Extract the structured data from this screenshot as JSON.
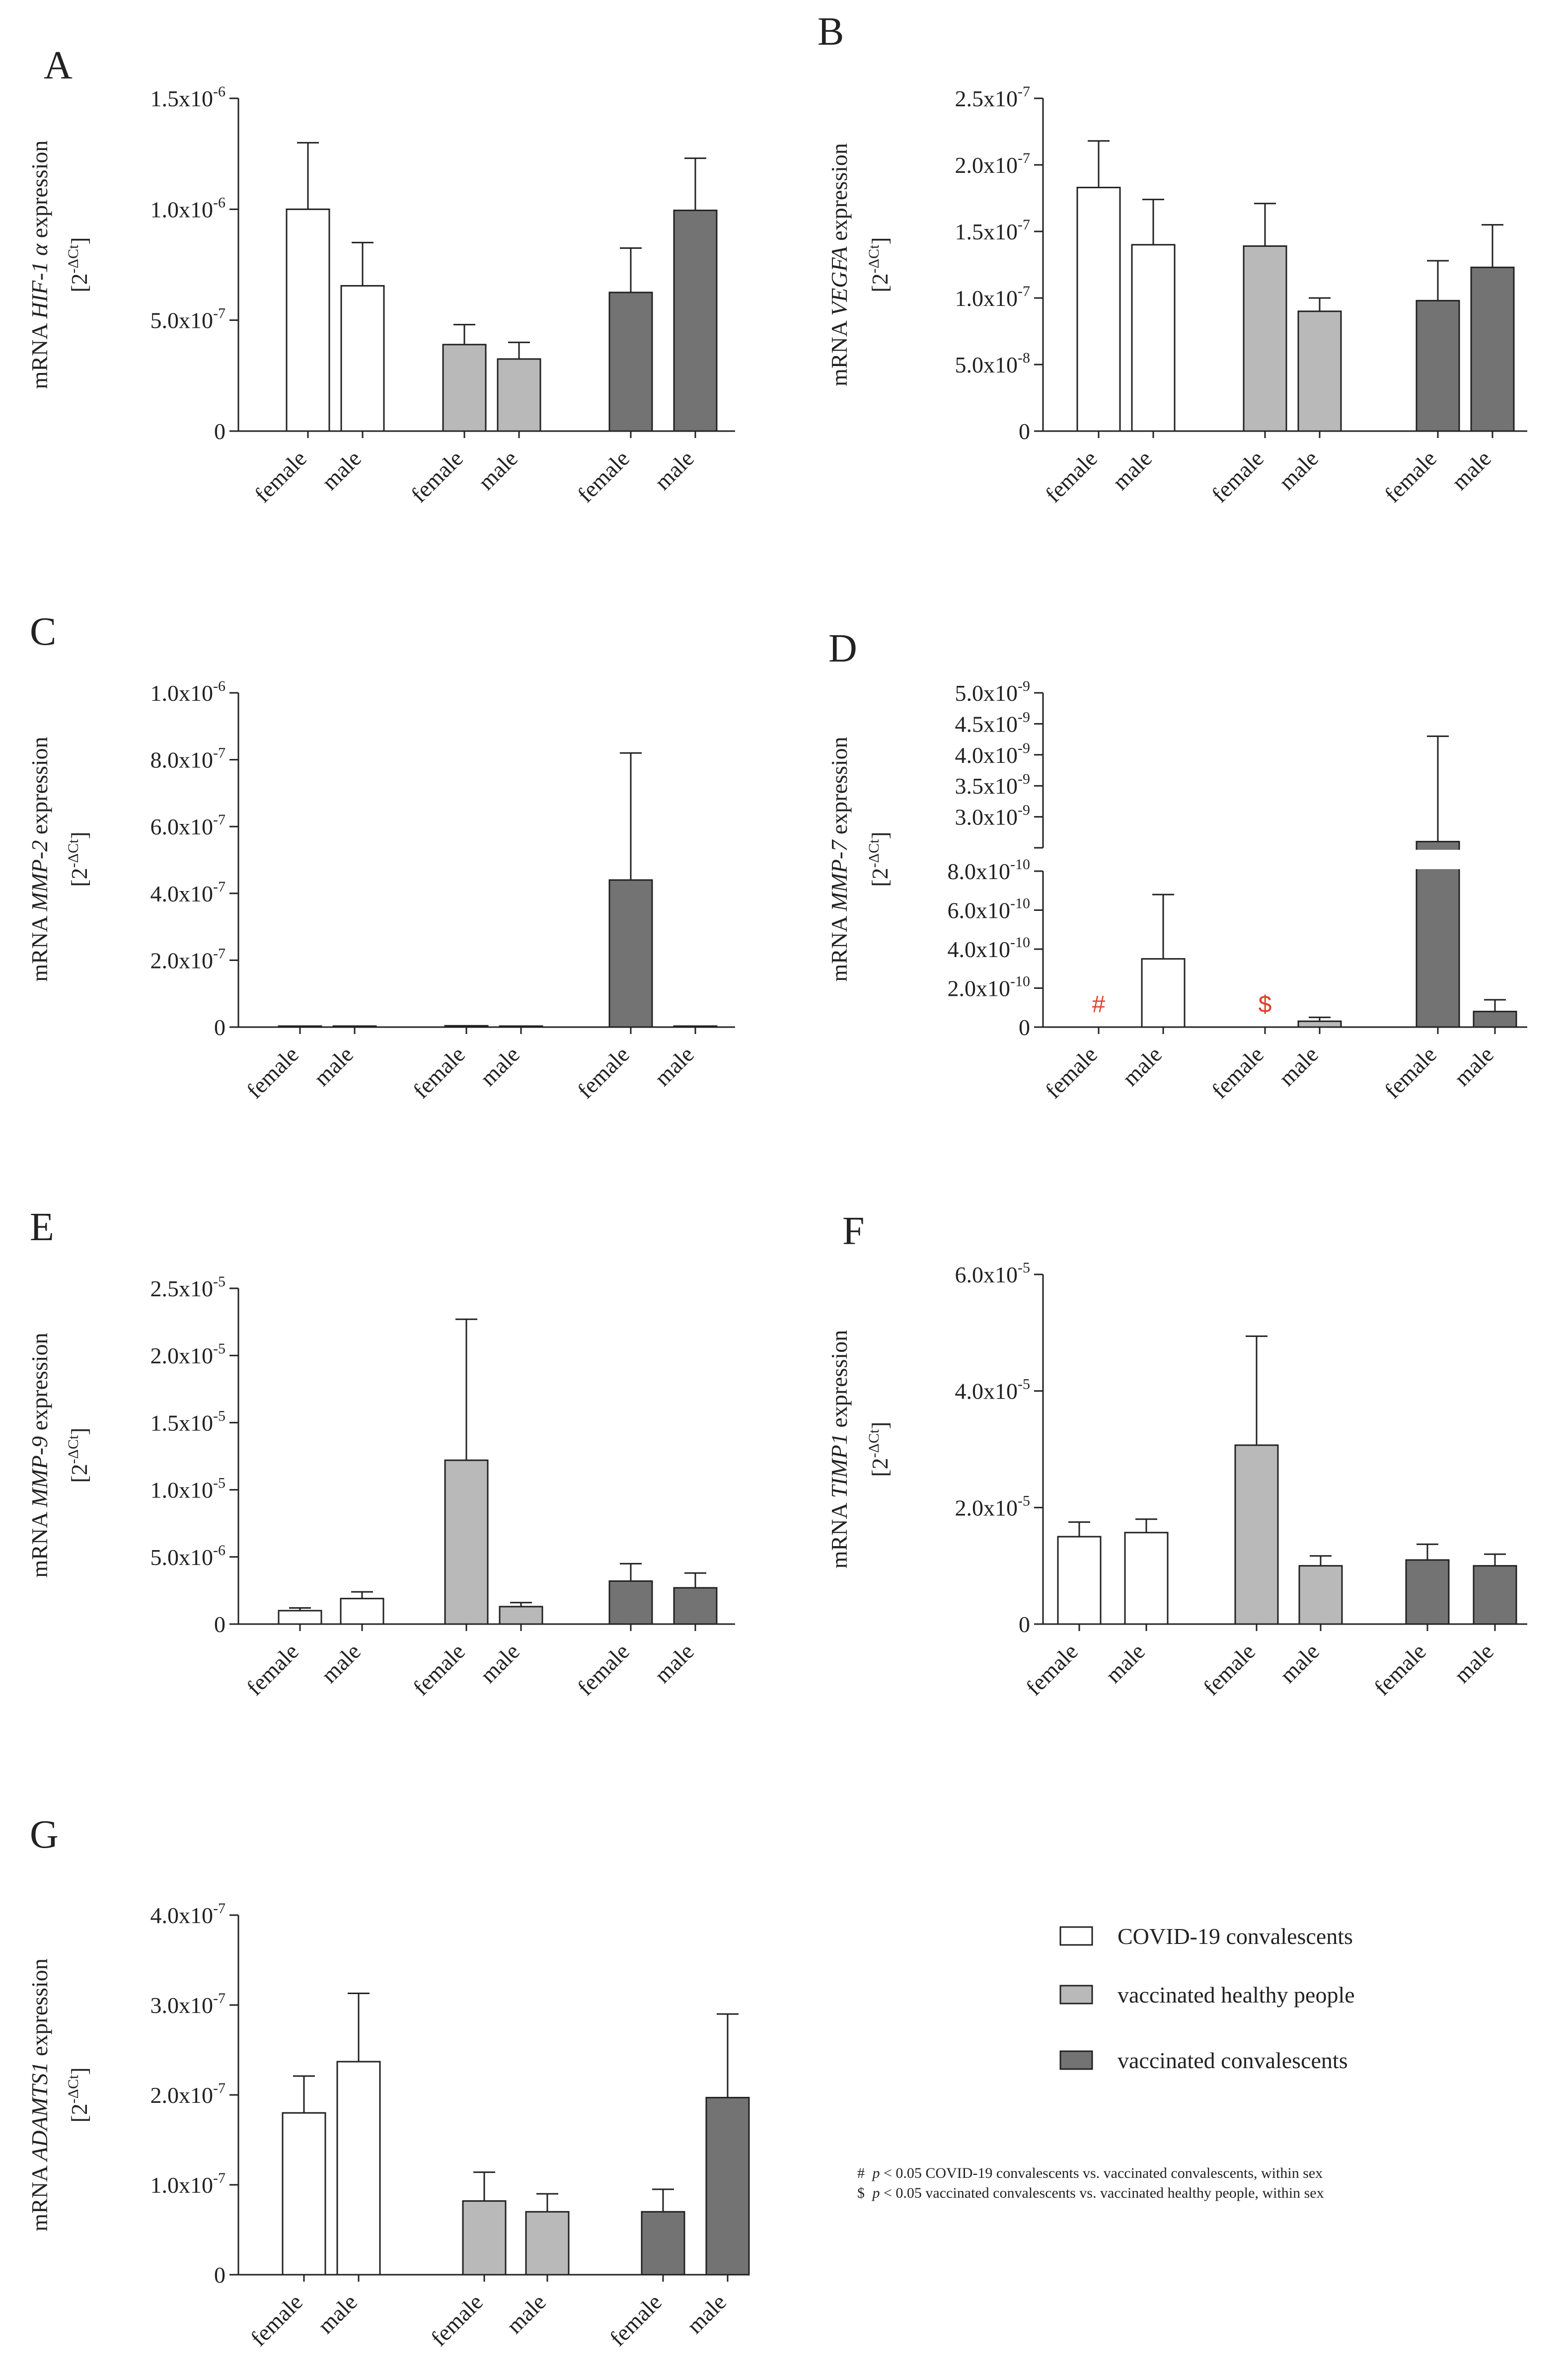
{
  "colors": {
    "group0": "#ffffff",
    "group1": "#b9b9b9",
    "group2": "#737373",
    "sig": "#e23a28"
  },
  "legend": [
    {
      "label": "COVID-19 convalescents",
      "color": "#ffffff"
    },
    {
      "label": "vaccinated healthy people",
      "color": "#b9b9b9"
    },
    {
      "label": "vaccinated convalescents",
      "color": "#737373"
    }
  ],
  "notes": {
    "hash": {
      "symbol": "#",
      "italic": "p",
      "text": " < 0.05 COVID-19 convalescents vs. vaccinated convalescents, within sex"
    },
    "dollar": {
      "symbol": "$",
      "italic": "p",
      "text": " < 0.05 vaccinated convalescents vs. vaccinated healthy people, within sex"
    }
  },
  "chart_data": [
    {
      "letter": "A",
      "type": "bar",
      "gene": "HIF-1 α",
      "ylabel": {
        "prefix": "mRNA ",
        "gene": "HIF-1 α",
        "suffix": " expression",
        "line2": "[2-ΔCt]"
      },
      "categories": [
        "female",
        "male",
        "female",
        "male",
        "female",
        "male"
      ],
      "groups": [
        0,
        0,
        1,
        1,
        2,
        2
      ],
      "values": [
        1e-06,
        6.55e-07,
        3.9e-07,
        3.25e-07,
        6.25e-07,
        9.95e-07
      ],
      "errors": [
        3e-07,
        1.95e-07,
        9e-08,
        7.5e-08,
        2e-07,
        2.35e-07
      ],
      "ylim": [
        0,
        1.5e-06
      ],
      "yticks": [
        0,
        5e-07,
        1e-06,
        1.5e-06
      ],
      "yticklabels": [
        {
          "m": "0",
          "e": ""
        },
        {
          "m": "5.0x10",
          "e": "-7"
        },
        {
          "m": "1.0x10",
          "e": "-6"
        },
        {
          "m": "1.5x10",
          "e": "-6"
        }
      ]
    },
    {
      "letter": "B",
      "type": "bar",
      "gene": "VEGFA",
      "ylabel": {
        "prefix": "mRNA ",
        "gene": "VEGFA",
        "suffix": " expression",
        "line2": "[2-ΔCt]"
      },
      "categories": [
        "female",
        "male",
        "female",
        "male",
        "female",
        "male"
      ],
      "groups": [
        0,
        0,
        1,
        1,
        2,
        2
      ],
      "values": [
        1.83e-07,
        1.4e-07,
        1.39e-07,
        9e-08,
        9.8e-08,
        1.23e-07
      ],
      "errors": [
        3.5e-08,
        3.4e-08,
        3.2e-08,
        1e-08,
        3e-08,
        3.2e-08
      ],
      "ylim": [
        0,
        2.5e-07
      ],
      "yticks": [
        0,
        5e-08,
        1e-07,
        1.5e-07,
        2e-07,
        2.5e-07
      ],
      "yticklabels": [
        {
          "m": "0",
          "e": ""
        },
        {
          "m": "5.0x10",
          "e": "-8"
        },
        {
          "m": "1.0x10",
          "e": "-7"
        },
        {
          "m": "1.5x10",
          "e": "-7"
        },
        {
          "m": "2.0x10",
          "e": "-7"
        },
        {
          "m": "2.5x10",
          "e": "-7"
        }
      ]
    },
    {
      "letter": "C",
      "type": "bar",
      "gene": "MMP-2",
      "ylabel": {
        "prefix": "mRNA ",
        "gene": "MMP-2",
        "suffix": " expression",
        "line2": "[2-ΔCt]"
      },
      "categories": [
        "female",
        "male",
        "female",
        "male",
        "female",
        "male"
      ],
      "groups": [
        0,
        0,
        1,
        1,
        2,
        2
      ],
      "values": [
        1e-09,
        3e-09,
        4e-09,
        1e-09,
        4.4e-07,
        1e-09
      ],
      "errors": [
        0,
        0,
        0,
        0,
        3.8e-07,
        0
      ],
      "ylim": [
        0,
        1e-06
      ],
      "yticks": [
        0,
        2e-07,
        4e-07,
        6e-07,
        8e-07,
        1e-06
      ],
      "yticklabels": [
        {
          "m": "0",
          "e": ""
        },
        {
          "m": "2.0x10",
          "e": "-7"
        },
        {
          "m": "4.0x10",
          "e": "-7"
        },
        {
          "m": "6.0x10",
          "e": "-7"
        },
        {
          "m": "8.0x10",
          "e": "-7"
        },
        {
          "m": "1.0x10",
          "e": "-6"
        }
      ]
    },
    {
      "letter": "D",
      "type": "bar",
      "broken_axis": true,
      "gene": "MMP-7",
      "ylabel": {
        "prefix": "mRNA ",
        "gene": "MMP-7",
        "suffix": " expression",
        "line2": "[2-ΔCt]"
      },
      "categories": [
        "female",
        "male",
        "female",
        "male",
        "female",
        "male"
      ],
      "groups": [
        0,
        0,
        1,
        1,
        2,
        2
      ],
      "values": [
        0,
        3.5e-10,
        0,
        3e-11,
        2.6e-09,
        8e-11
      ],
      "errors": [
        0,
        3.3e-10,
        0,
        2e-11,
        1.7e-09,
        6e-11
      ],
      "significance": [
        "#",
        "",
        "$",
        "",
        "",
        ""
      ],
      "ylim_lower": [
        0,
        8e-10
      ],
      "ylim_upper": [
        2.5e-09,
        5e-09
      ],
      "yticks_lower": [
        0,
        2e-10,
        4e-10,
        6e-10,
        8e-10
      ],
      "yticks_upper": [
        3e-09,
        3.5e-09,
        4e-09,
        4.5e-09,
        5e-09
      ],
      "yticklabels_lower": [
        {
          "m": "0",
          "e": ""
        },
        {
          "m": "2.0x10",
          "e": "-10"
        },
        {
          "m": "4.0x10",
          "e": "-10"
        },
        {
          "m": "6.0x10",
          "e": "-10"
        },
        {
          "m": "8.0x10",
          "e": "-10"
        }
      ],
      "yticklabels_upper": [
        {
          "m": "3.0x10",
          "e": "-9"
        },
        {
          "m": "3.5x10",
          "e": "-9"
        },
        {
          "m": "4.0x10",
          "e": "-9"
        },
        {
          "m": "4.5x10",
          "e": "-9"
        },
        {
          "m": "5.0x10",
          "e": "-9"
        }
      ]
    },
    {
      "letter": "E",
      "type": "bar",
      "gene": "MMP-9",
      "ylabel": {
        "prefix": "mRNA ",
        "gene": "MMP-9",
        "suffix": " expression",
        "line2": "[2-ΔCt]"
      },
      "categories": [
        "female",
        "male",
        "female",
        "male",
        "female",
        "male"
      ],
      "groups": [
        0,
        0,
        1,
        1,
        2,
        2
      ],
      "values": [
        1e-06,
        1.9e-06,
        1.22e-05,
        1.3e-06,
        3.2e-06,
        2.7e-06
      ],
      "errors": [
        2e-07,
        5e-07,
        1.05e-05,
        3e-07,
        1.3e-06,
        1.1e-06
      ],
      "ylim": [
        0,
        2.5e-05
      ],
      "yticks": [
        0,
        5e-06,
        1e-05,
        1.5e-05,
        2e-05,
        2.5e-05
      ],
      "yticklabels": [
        {
          "m": "0",
          "e": ""
        },
        {
          "m": "5.0x10",
          "e": "-6"
        },
        {
          "m": "1.0x10",
          "e": "-5"
        },
        {
          "m": "1.5x10",
          "e": "-5"
        },
        {
          "m": "2.0x10",
          "e": "-5"
        },
        {
          "m": "2.5x10",
          "e": "-5"
        }
      ]
    },
    {
      "letter": "F",
      "type": "bar",
      "gene": "TIMP1",
      "ylabel": {
        "prefix": "mRNA ",
        "gene": "TIMP1",
        "suffix": " expression",
        "line2": "[2-ΔCt]"
      },
      "categories": [
        "female",
        "male",
        "female",
        "male",
        "female",
        "male"
      ],
      "groups": [
        0,
        0,
        1,
        1,
        2,
        2
      ],
      "values": [
        1.5e-05,
        1.57e-05,
        3.07e-05,
        1e-05,
        1.1e-05,
        1e-05
      ],
      "errors": [
        2.5e-06,
        2.3e-06,
        1.87e-05,
        1.7e-06,
        2.7e-06,
        2e-06
      ],
      "ylim": [
        0,
        6e-05
      ],
      "yticks": [
        0,
        2e-05,
        4e-05,
        6e-05
      ],
      "yticklabels": [
        {
          "m": "0",
          "e": ""
        },
        {
          "m": "2.0x10",
          "e": "-5"
        },
        {
          "m": "4.0x10",
          "e": "-5"
        },
        {
          "m": "6.0x10",
          "e": "-5"
        }
      ]
    },
    {
      "letter": "G",
      "type": "bar",
      "gene": "ADAMTS1",
      "ylabel": {
        "prefix": "mRNA ",
        "gene": "ADAMTS1",
        "suffix": " expression",
        "line2": "[2-ΔCt]"
      },
      "categories": [
        "female",
        "male",
        "female",
        "male",
        "female",
        "male"
      ],
      "groups": [
        0,
        0,
        1,
        1,
        2,
        2
      ],
      "values": [
        1.8e-07,
        2.37e-07,
        8.2e-08,
        7e-08,
        7e-08,
        1.97e-07
      ],
      "errors": [
        4.1e-08,
        7.6e-08,
        3.2e-08,
        2e-08,
        2.5e-08,
        9.3e-08
      ],
      "ylim": [
        0,
        4e-07
      ],
      "yticks": [
        0,
        1e-07,
        2e-07,
        3e-07,
        4e-07
      ],
      "yticklabels": [
        {
          "m": "0",
          "e": ""
        },
        {
          "m": "1.0x10",
          "e": "-7"
        },
        {
          "m": "2.0x10",
          "e": "-7"
        },
        {
          "m": "3.0x10",
          "e": "-7"
        },
        {
          "m": "4.0x10",
          "e": "-7"
        }
      ]
    }
  ]
}
